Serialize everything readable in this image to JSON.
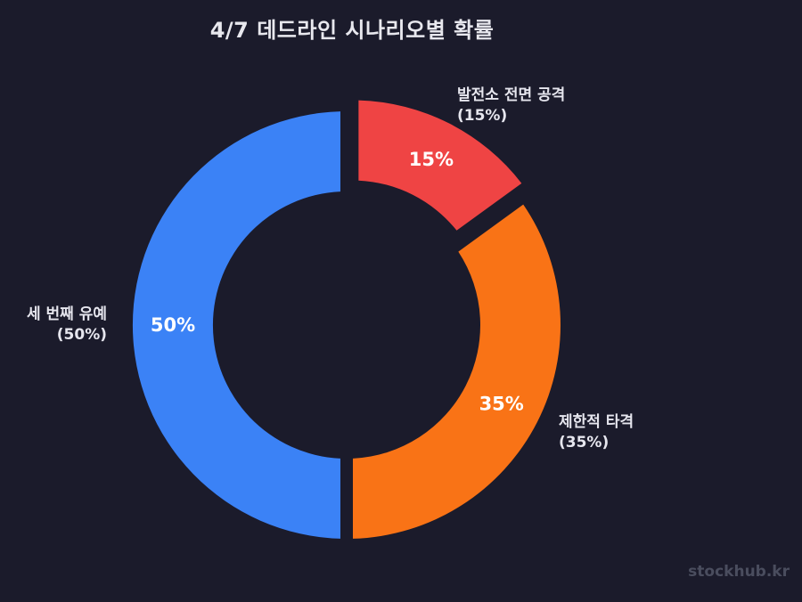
{
  "title": "4/7 데드라인 시나리오별 확률",
  "watermark": "stockhub.kr",
  "colors": {
    "background": "#1b1b2b"
  },
  "chart_data": {
    "type": "pie",
    "donut": true,
    "title": "4/7 데드라인 시나리오별 확률",
    "slices": [
      {
        "label": "발전소 전면 공격",
        "value": 15,
        "pct_label": "15%",
        "outer_label": "(15%)",
        "color": "#ef4444",
        "exploded": true
      },
      {
        "label": "제한적 타격",
        "value": 35,
        "pct_label": "35%",
        "outer_label": "(35%)",
        "color": "#f97316",
        "exploded": false
      },
      {
        "label": "세 번째 유예",
        "value": 50,
        "pct_label": "50%",
        "outer_label": "(50%)",
        "color": "#3b82f6",
        "exploded": false
      }
    ]
  }
}
